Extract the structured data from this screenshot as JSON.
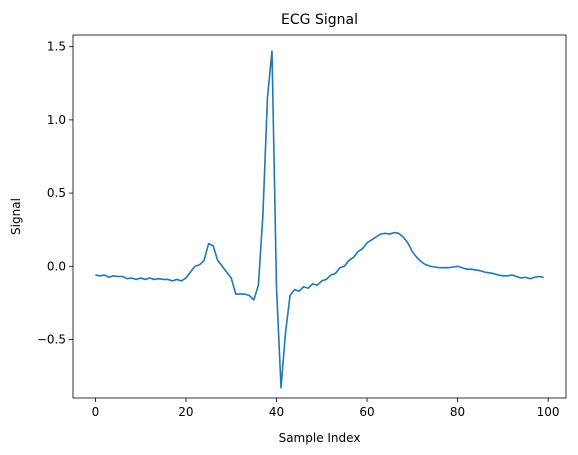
{
  "chart_data": {
    "type": "line",
    "title": "ECG Signal",
    "xlabel": "Sample Index",
    "ylabel": "Signal",
    "xlim": [
      -4.95,
      103.95
    ],
    "ylim": [
      -0.9,
      1.58
    ],
    "xticks": [
      0,
      20,
      40,
      60,
      80,
      100
    ],
    "yticks": [
      -0.5,
      0.0,
      0.5,
      1.0,
      1.5
    ],
    "xtick_labels": [
      "0",
      "20",
      "40",
      "60",
      "80",
      "100"
    ],
    "ytick_labels": [
      "−0.5",
      "0.0",
      "0.5",
      "1.0",
      "1.5"
    ],
    "grid": false,
    "legend": "none",
    "series": [
      {
        "color": "#1f77b4",
        "x": [
          0,
          1,
          2,
          3,
          4,
          5,
          6,
          7,
          8,
          9,
          10,
          11,
          12,
          13,
          14,
          15,
          16,
          17,
          18,
          19,
          20,
          21,
          22,
          23,
          24,
          25,
          26,
          27,
          28,
          29,
          30,
          31,
          32,
          33,
          34,
          35,
          36,
          37,
          38,
          39,
          40,
          41,
          42,
          43,
          44,
          45,
          46,
          47,
          48,
          49,
          50,
          51,
          52,
          53,
          54,
          55,
          56,
          57,
          58,
          59,
          60,
          61,
          62,
          63,
          64,
          65,
          66,
          67,
          68,
          69,
          70,
          71,
          72,
          73,
          74,
          75,
          76,
          77,
          78,
          79,
          80,
          81,
          82,
          83,
          84,
          85,
          86,
          87,
          88,
          89,
          90,
          91,
          92,
          93,
          94,
          95,
          96,
          97,
          98,
          99
        ],
        "y": [
          -0.06,
          -0.065,
          -0.06,
          -0.075,
          -0.065,
          -0.07,
          -0.07,
          -0.085,
          -0.08,
          -0.09,
          -0.08,
          -0.09,
          -0.08,
          -0.09,
          -0.085,
          -0.09,
          -0.09,
          -0.1,
          -0.09,
          -0.1,
          -0.08,
          -0.04,
          0.0,
          0.01,
          0.04,
          0.155,
          0.14,
          0.04,
          0.0,
          -0.04,
          -0.08,
          -0.19,
          -0.19,
          -0.19,
          -0.2,
          -0.23,
          -0.13,
          0.35,
          1.15,
          1.47,
          -0.14,
          -0.83,
          -0.45,
          -0.2,
          -0.16,
          -0.17,
          -0.14,
          -0.15,
          -0.12,
          -0.13,
          -0.1,
          -0.09,
          -0.06,
          -0.05,
          -0.01,
          0.0,
          0.04,
          0.06,
          0.1,
          0.12,
          0.16,
          0.18,
          0.2,
          0.22,
          0.225,
          0.22,
          0.23,
          0.225,
          0.2,
          0.16,
          0.1,
          0.06,
          0.03,
          0.01,
          0.0,
          -0.005,
          -0.01,
          -0.01,
          -0.01,
          -0.005,
          0.0,
          -0.01,
          -0.02,
          -0.02,
          -0.025,
          -0.03,
          -0.04,
          -0.045,
          -0.05,
          -0.06,
          -0.065,
          -0.065,
          -0.06,
          -0.07,
          -0.08,
          -0.075,
          -0.085,
          -0.075,
          -0.07,
          -0.075
        ]
      }
    ]
  }
}
